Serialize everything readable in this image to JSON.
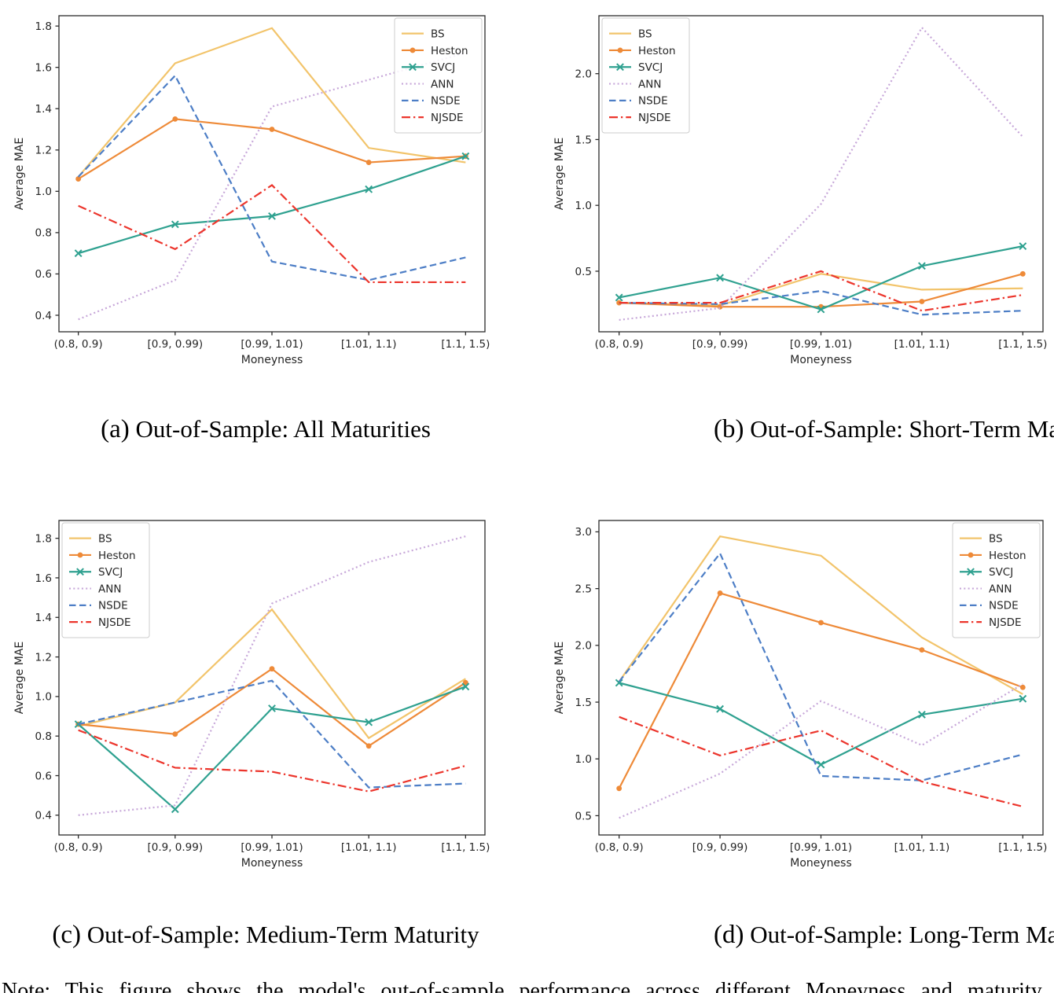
{
  "figure": {
    "captions": [
      {
        "tag": "(a)",
        "text": "Out-of-Sample: All Maturities"
      },
      {
        "tag": "(b)",
        "text": "Out-of-Sample: Short-Term Maturity"
      },
      {
        "tag": "(c)",
        "text": "Out-of-Sample: Medium-Term Maturity"
      },
      {
        "tag": "(d)",
        "text": "Out-of-Sample: Long-Term Maturity"
      }
    ],
    "note": "Note: This figure shows the model's out-of-sample performance across different Moneyness and maturity buckets."
  },
  "axis": {
    "text_color": "#262626",
    "spine_color": "#2b2b2b",
    "legend_border": "#cccccc"
  },
  "series_styles": {
    "BS": {
      "color": "#F2C46B",
      "linestyle": "solid",
      "marker": "none"
    },
    "Heston": {
      "color": "#EE8A38",
      "linestyle": "solid",
      "marker": "circle"
    },
    "SVCJ": {
      "color": "#2FA190",
      "linestyle": "solid",
      "marker": "x"
    },
    "ANN": {
      "color": "#C7A7D9",
      "linestyle": "dotted",
      "marker": "none"
    },
    "NSDE": {
      "color": "#4D7EC6",
      "linestyle": "dashed",
      "marker": "none"
    },
    "NJSDE": {
      "color": "#EC352C",
      "linestyle": "dashdot",
      "marker": "none"
    }
  },
  "chart_data": [
    {
      "id": "a",
      "type": "line",
      "title": "Out-of-Sample: All Maturities",
      "xlabel": "Moneyness",
      "ylabel": "Average MAE",
      "categories": [
        "(0.8, 0.9)",
        "[0.9, 0.99)",
        "[0.99, 1.01)",
        "[1.01, 1.1)",
        "[1.1, 1.5)"
      ],
      "yticks": [
        0.4,
        0.6,
        0.8,
        1.0,
        1.2,
        1.4,
        1.6,
        1.8
      ],
      "ylim": [
        0.32,
        1.85
      ],
      "grid": false,
      "legend_position": "top-right",
      "series": [
        {
          "name": "BS",
          "values": [
            1.07,
            1.62,
            1.79,
            1.21,
            1.14
          ]
        },
        {
          "name": "Heston",
          "values": [
            1.06,
            1.35,
            1.3,
            1.14,
            1.17
          ]
        },
        {
          "name": "SVCJ",
          "values": [
            0.7,
            0.84,
            0.88,
            1.01,
            1.17
          ]
        },
        {
          "name": "ANN",
          "values": [
            0.38,
            0.57,
            1.41,
            1.54,
            1.67
          ]
        },
        {
          "name": "NSDE",
          "values": [
            1.07,
            1.56,
            0.66,
            0.57,
            0.68
          ]
        },
        {
          "name": "NJSDE",
          "values": [
            0.93,
            0.72,
            1.03,
            0.56,
            0.56
          ]
        }
      ]
    },
    {
      "id": "b",
      "type": "line",
      "title": "Out-of-Sample: Short-Term Maturity",
      "xlabel": "Moneyness",
      "ylabel": "Average MAE",
      "categories": [
        "(0.8, 0.9)",
        "[0.9, 0.99)",
        "[0.99, 1.01)",
        "[1.01, 1.1)",
        "[1.1, 1.5)"
      ],
      "yticks": [
        0.5,
        1.0,
        1.5,
        2.0
      ],
      "ylim": [
        0.04,
        2.44
      ],
      "grid": false,
      "legend_position": "top-left",
      "series": [
        {
          "name": "BS",
          "values": [
            0.26,
            0.24,
            0.48,
            0.36,
            0.37
          ]
        },
        {
          "name": "Heston",
          "values": [
            0.26,
            0.23,
            0.23,
            0.27,
            0.48
          ]
        },
        {
          "name": "SVCJ",
          "values": [
            0.3,
            0.45,
            0.21,
            0.54,
            0.69
          ]
        },
        {
          "name": "ANN",
          "values": [
            0.13,
            0.22,
            1.01,
            2.35,
            1.52
          ]
        },
        {
          "name": "NSDE",
          "values": [
            0.26,
            0.25,
            0.35,
            0.17,
            0.2
          ]
        },
        {
          "name": "NJSDE",
          "values": [
            0.26,
            0.26,
            0.5,
            0.2,
            0.32
          ]
        }
      ]
    },
    {
      "id": "c",
      "type": "line",
      "title": "Out-of-Sample: Medium-Term Maturity",
      "xlabel": "Moneyness",
      "ylabel": "Average MAE",
      "categories": [
        "(0.8, 0.9)",
        "[0.9, 0.99)",
        "[0.99, 1.01)",
        "[1.01, 1.1)",
        "[1.1, 1.5)"
      ],
      "yticks": [
        0.4,
        0.6,
        0.8,
        1.0,
        1.2,
        1.4,
        1.6,
        1.8
      ],
      "ylim": [
        0.3,
        1.89
      ],
      "grid": false,
      "legend_position": "top-left",
      "series": [
        {
          "name": "BS",
          "values": [
            0.85,
            0.97,
            1.44,
            0.79,
            1.09
          ]
        },
        {
          "name": "Heston",
          "values": [
            0.86,
            0.81,
            1.14,
            0.75,
            1.07
          ]
        },
        {
          "name": "SVCJ",
          "values": [
            0.86,
            0.43,
            0.94,
            0.87,
            1.05
          ]
        },
        {
          "name": "ANN",
          "values": [
            0.4,
            0.45,
            1.47,
            1.68,
            1.81
          ]
        },
        {
          "name": "NSDE",
          "values": [
            0.86,
            0.97,
            1.08,
            0.54,
            0.56
          ]
        },
        {
          "name": "NJSDE",
          "values": [
            0.83,
            0.64,
            0.62,
            0.52,
            0.65
          ]
        }
      ]
    },
    {
      "id": "d",
      "type": "line",
      "title": "Out-of-Sample: Long-Term Maturity",
      "xlabel": "Moneyness",
      "ylabel": "Average MAE",
      "categories": [
        "(0.8, 0.9)",
        "[0.9, 0.99)",
        "[0.99, 1.01)",
        "[1.01, 1.1)",
        "[1.1, 1.5)"
      ],
      "yticks": [
        0.5,
        1.0,
        1.5,
        2.0,
        2.5,
        3.0
      ],
      "ylim": [
        0.33,
        3.1
      ],
      "grid": false,
      "legend_position": "top-right",
      "series": [
        {
          "name": "BS",
          "values": [
            1.68,
            2.96,
            2.79,
            2.07,
            1.57
          ]
        },
        {
          "name": "Heston",
          "values": [
            0.74,
            2.46,
            2.2,
            1.96,
            1.63
          ]
        },
        {
          "name": "SVCJ",
          "values": [
            1.67,
            1.44,
            0.95,
            1.39,
            1.53
          ]
        },
        {
          "name": "ANN",
          "values": [
            0.48,
            0.87,
            1.51,
            1.12,
            1.66
          ]
        },
        {
          "name": "NSDE",
          "values": [
            1.68,
            2.81,
            0.85,
            0.81,
            1.04
          ]
        },
        {
          "name": "NJSDE",
          "values": [
            1.37,
            1.03,
            1.25,
            0.8,
            0.58
          ]
        }
      ]
    }
  ]
}
